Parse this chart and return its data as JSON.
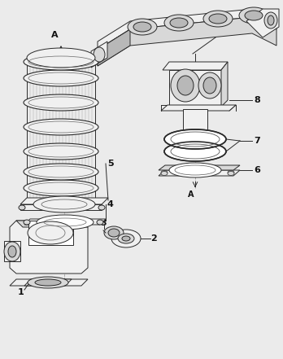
{
  "figsize": [
    3.48,
    4.41
  ],
  "dpi": 100,
  "bg_color": "#ebebeb",
  "lc": "#2a2a2a",
  "lw": 0.7,
  "fill_light": "#f0f0f0",
  "fill_mid": "#d8d8d8",
  "fill_dark": "#b8b8b8",
  "fill_white": "#ffffff"
}
